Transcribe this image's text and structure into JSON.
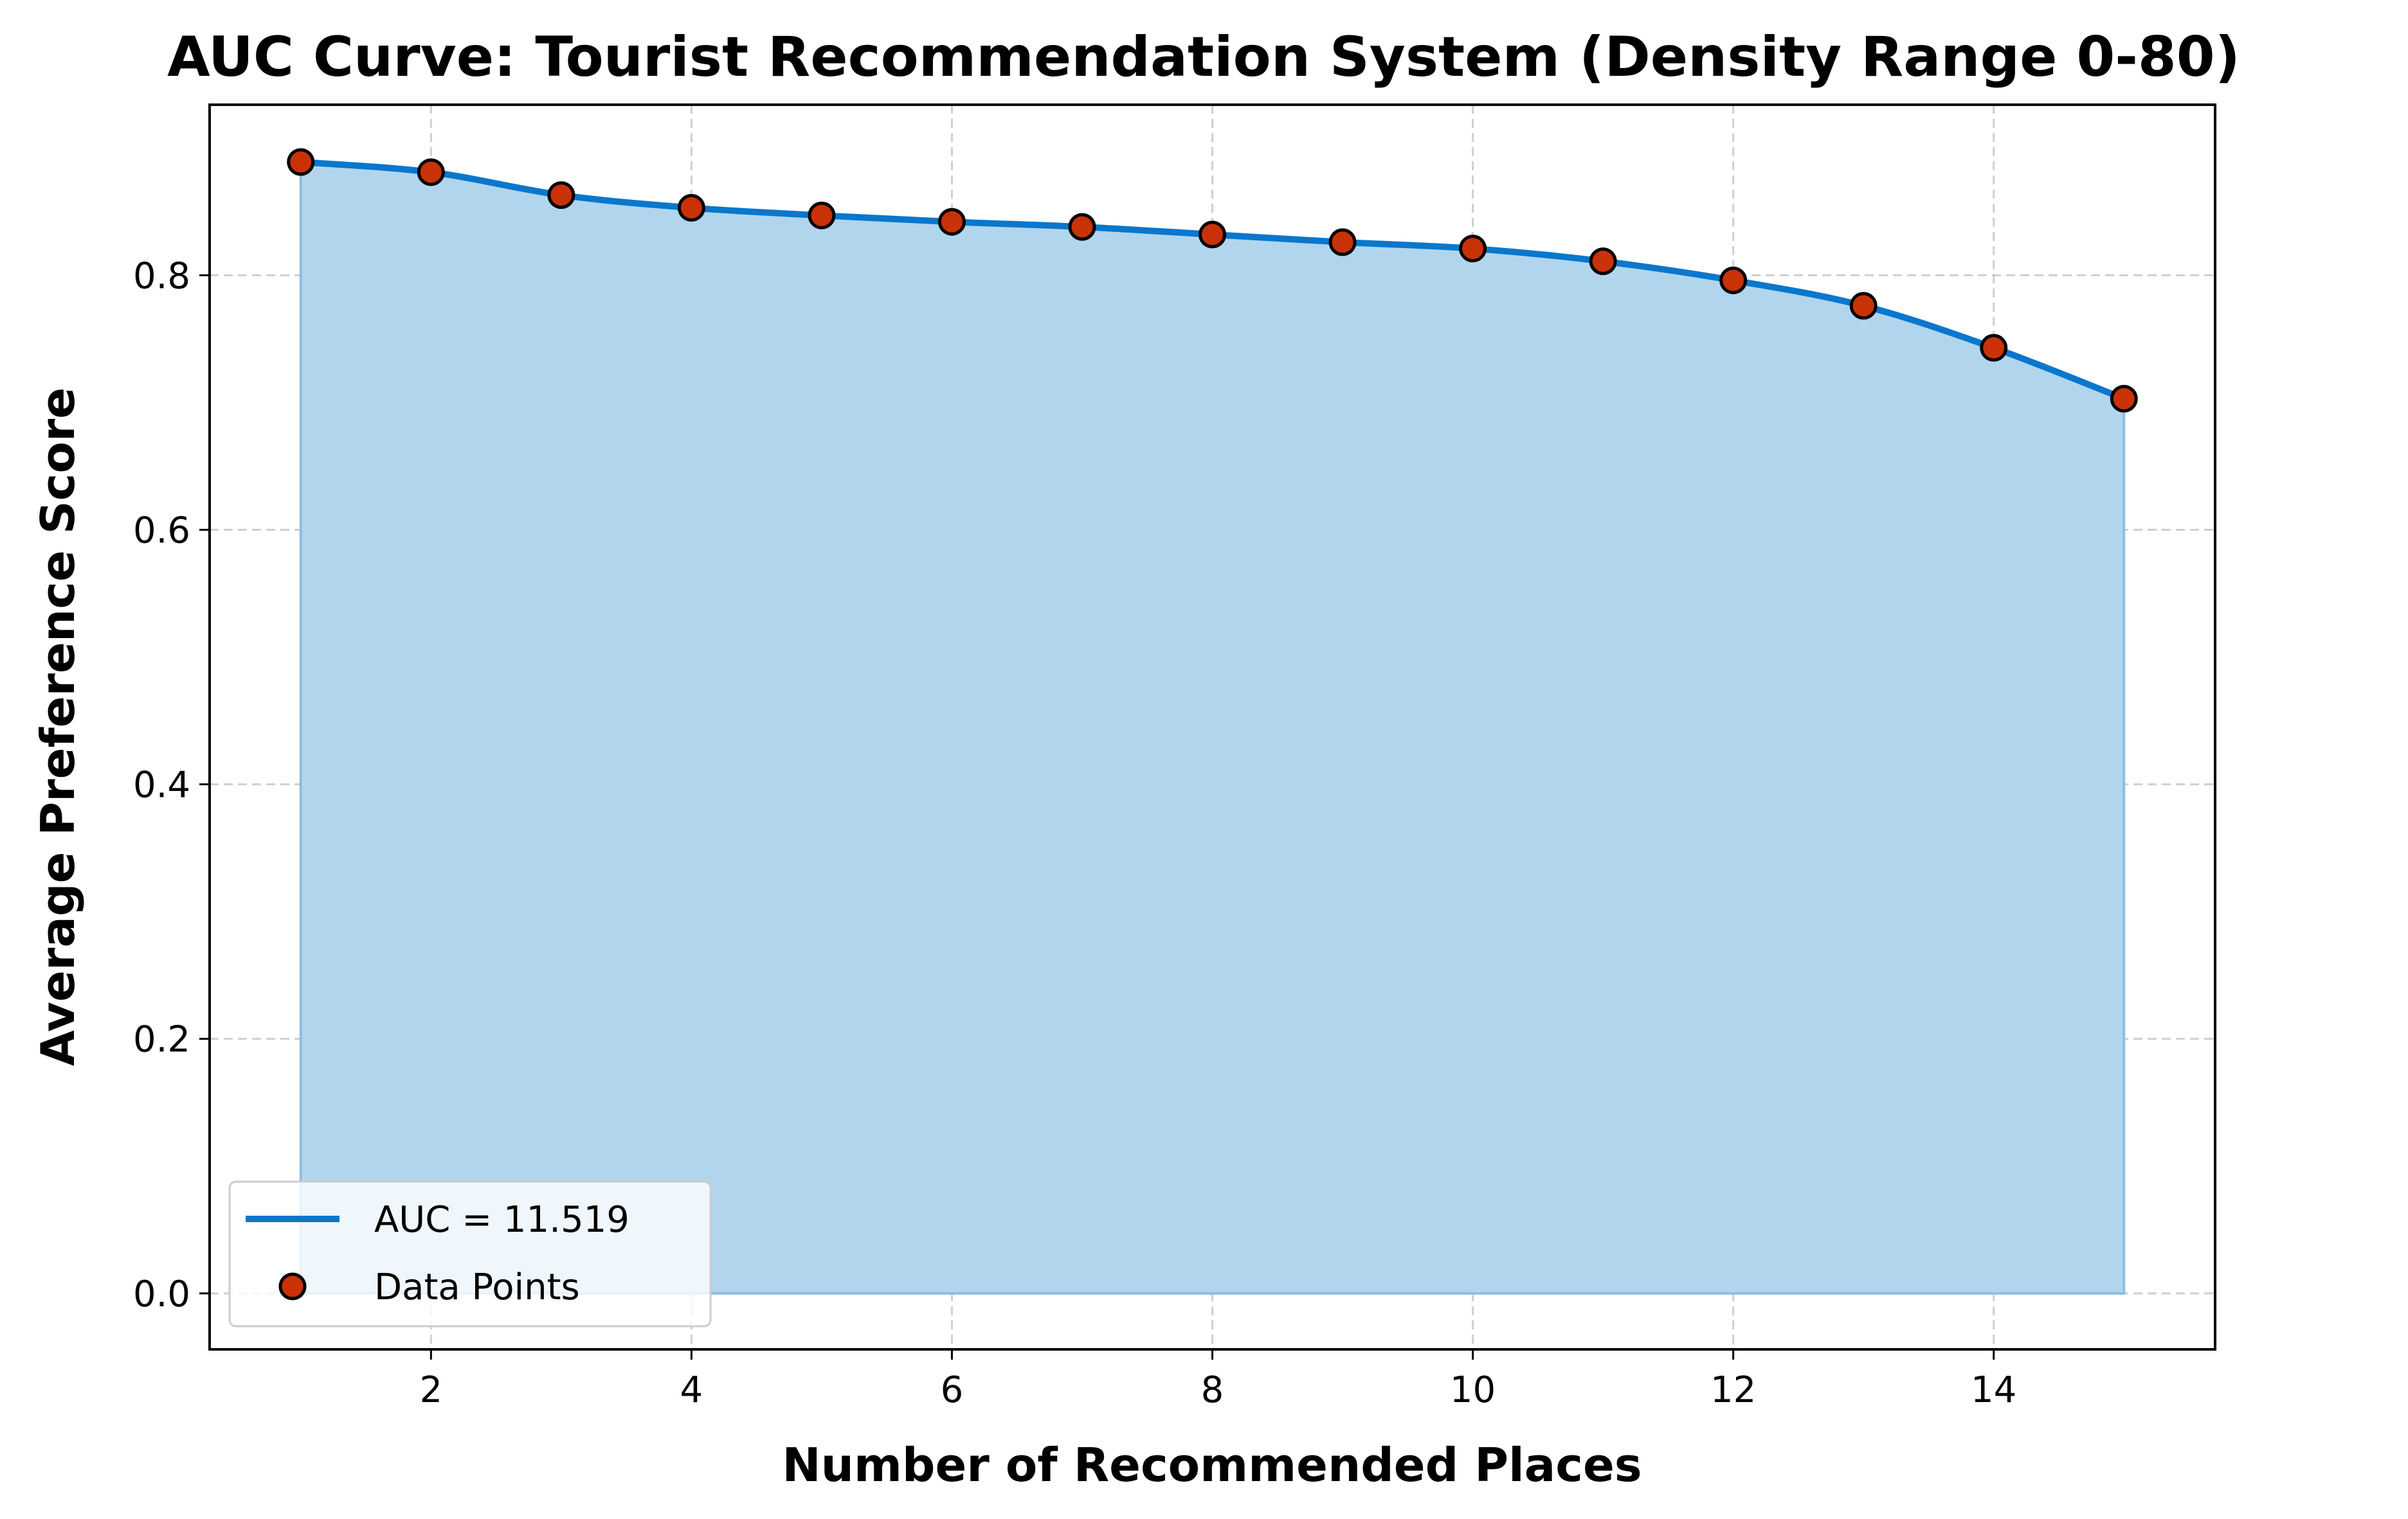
{
  "chart_data": {
    "type": "area",
    "title": "AUC Curve: Tourist Recommendation System (Density Range 0-80)",
    "xlabel": "Number of Recommended Places",
    "ylabel": "Average Preference Score",
    "xlim": [
      0.3,
      15.7
    ],
    "ylim": [
      -0.044,
      0.934
    ],
    "xticks": [
      2,
      4,
      6,
      8,
      10,
      12,
      14
    ],
    "yticks": [
      0.0,
      0.2,
      0.4,
      0.6,
      0.8
    ],
    "xtick_labels": [
      "2",
      "4",
      "6",
      "8",
      "10",
      "12",
      "14"
    ],
    "ytick_labels": [
      "0.0",
      "0.2",
      "0.4",
      "0.6",
      "0.8"
    ],
    "grid": true,
    "legend_position": "lower-left",
    "series": [
      {
        "name": "AUC = 11.519",
        "kind": "smooth-line-with-fill",
        "color": "#0a77cc",
        "fill_color": "#b2d5ee"
      },
      {
        "name": "Data Points",
        "kind": "scatter",
        "color": "#c83206",
        "edge_color": "#000000"
      }
    ],
    "x": [
      1,
      2,
      3,
      4,
      5,
      6,
      7,
      8,
      9,
      10,
      11,
      12,
      13,
      14,
      15
    ],
    "y": [
      0.889,
      0.881,
      0.863,
      0.853,
      0.847,
      0.842,
      0.838,
      0.832,
      0.826,
      0.821,
      0.811,
      0.796,
      0.776,
      0.743,
      0.703
    ]
  }
}
